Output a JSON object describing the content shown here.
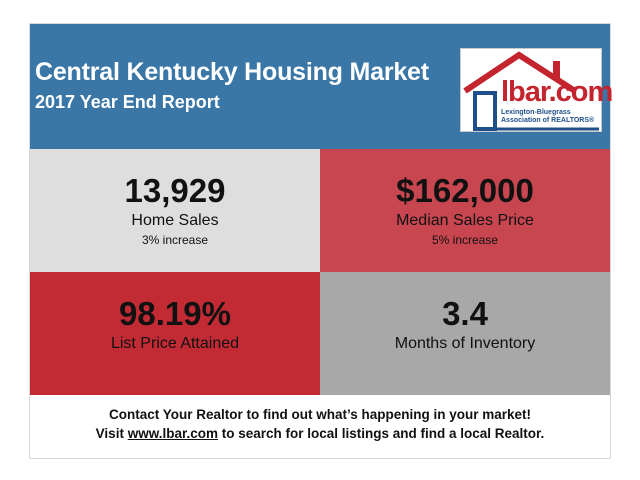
{
  "header": {
    "title": "Central Kentucky Housing Market",
    "subtitle": "2017 Year End Report"
  },
  "logo": {
    "brand": "lbar.com",
    "association": "Lexington-Bluegrass Association of REALTORS®",
    "colors": {
      "red": "#c4242e",
      "blue": "#1f4f8a"
    },
    "icon": "house-roof-icon"
  },
  "stats": {
    "home_sales": {
      "value": "13,929",
      "label": "Home Sales",
      "sub": "3% increase"
    },
    "median_price": {
      "value": "$162,000",
      "label": "Median Sales Price",
      "sub": "5% increase"
    },
    "list_price": {
      "value": "98.19%",
      "label": "List Price Attained"
    },
    "inventory": {
      "value": "3.4",
      "label": "Months of Inventory"
    }
  },
  "footer": {
    "line1": "Contact Your Realtor to find out what’s happening in your market!",
    "line2_prefix": "Visit ",
    "link": "www.lbar.com",
    "line2_suffix": " to search for local listings and find a local Realtor."
  },
  "colors": {
    "header_bg": "#3a77a6",
    "tile_light_gray": "#dedede",
    "tile_light_red": "#c8464f",
    "tile_dark_red": "#c22b34",
    "tile_gray": "#a8a8a8"
  }
}
